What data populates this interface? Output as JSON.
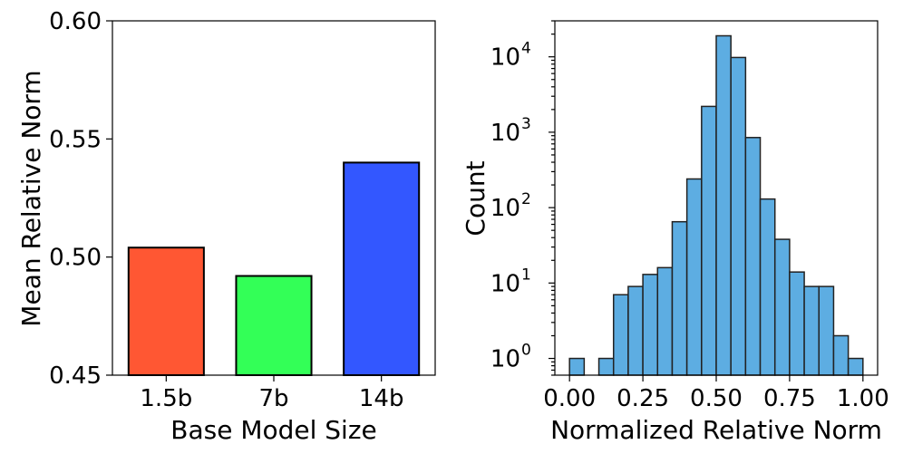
{
  "chart_data": [
    {
      "type": "bar",
      "title": "",
      "xlabel": "Base Model Size",
      "ylabel": "Mean Relative Norm",
      "categories": [
        "1.5b",
        "7b",
        "14b"
      ],
      "values": [
        0.504,
        0.492,
        0.54
      ],
      "colors": [
        "#ff5733",
        "#33ff57",
        "#3357ff"
      ],
      "ylim": [
        0.45,
        0.6
      ],
      "yticks": [
        "0.45",
        "0.50",
        "0.55",
        "0.60"
      ],
      "grid": false
    },
    {
      "type": "bar",
      "subtype": "histogram",
      "title": "",
      "xlabel": "Normalized Relative Norm",
      "ylabel": "Count",
      "yscale": "log",
      "bin_edges": [
        0.0,
        0.05,
        0.1,
        0.15,
        0.2,
        0.25,
        0.3,
        0.35,
        0.4,
        0.45,
        0.5,
        0.55,
        0.6,
        0.65,
        0.7,
        0.75,
        0.8,
        0.85,
        0.9,
        0.95,
        1.0
      ],
      "counts": [
        1,
        0,
        1,
        7,
        9,
        13,
        16,
        65,
        240,
        2200,
        19000,
        9800,
        850,
        130,
        38,
        14,
        9,
        9,
        2,
        1
      ],
      "color": "#5dade2",
      "xlim": [
        -0.05,
        1.05
      ],
      "xticks": [
        "0.00",
        "0.25",
        "0.50",
        "0.75",
        "1.00"
      ],
      "ylim": [
        0.6,
        30000
      ],
      "ytick_exponents": [
        "0",
        "1",
        "2",
        "3",
        "4"
      ],
      "ytick_base": "10",
      "grid": false
    }
  ]
}
